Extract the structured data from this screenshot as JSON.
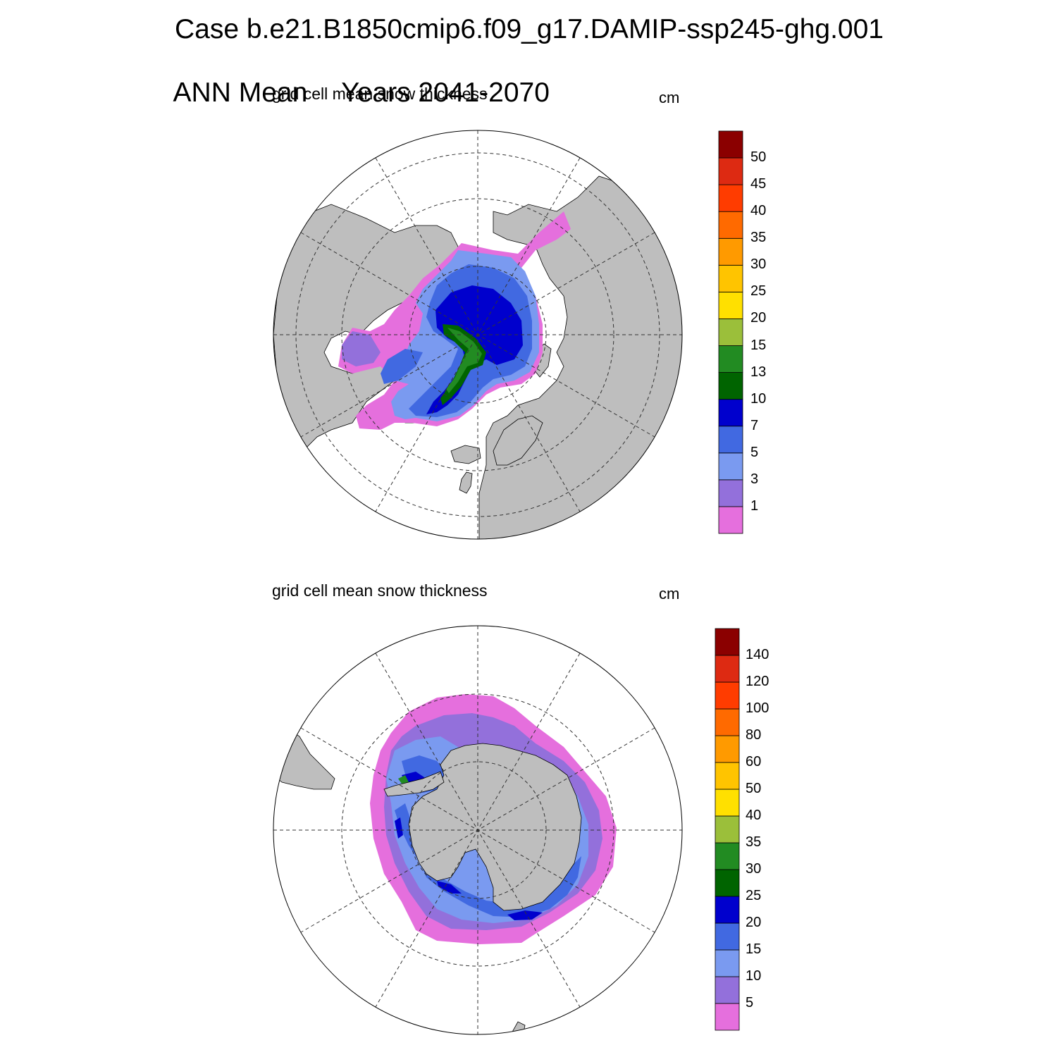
{
  "header": {
    "line1": "Case b.e21.B1850cmip6.f09_g17.DAMIP-ssp245-ghg.001",
    "line2_season": "ANN Mean",
    "line2_years": "Years 2041-2070"
  },
  "colors": {
    "land": "#bebebe",
    "no_data": "#ffffff",
    "palette": [
      "#e56fdd",
      "#9370db",
      "#7a9af0",
      "#4169e1",
      "#0000cd",
      "#006400",
      "#228b22",
      "#9bbf3a",
      "#ffe000",
      "#ffc400",
      "#ff9a00",
      "#ff6a00",
      "#ff3c00",
      "#dd2a12",
      "#8b0000"
    ]
  },
  "panels": [
    {
      "title": "grid cell mean snow thickness",
      "units": "cm",
      "hemisphere": "north",
      "levels": [
        "1",
        "3",
        "5",
        "7",
        "10",
        "13",
        "15",
        "20",
        "25",
        "30",
        "35",
        "40",
        "45",
        "50"
      ]
    },
    {
      "title": "grid cell mean snow thickness",
      "units": "cm",
      "hemisphere": "south",
      "levels": [
        "5",
        "10",
        "15",
        "20",
        "25",
        "30",
        "35",
        "40",
        "50",
        "60",
        "80",
        "100",
        "120",
        "140"
      ]
    }
  ]
}
